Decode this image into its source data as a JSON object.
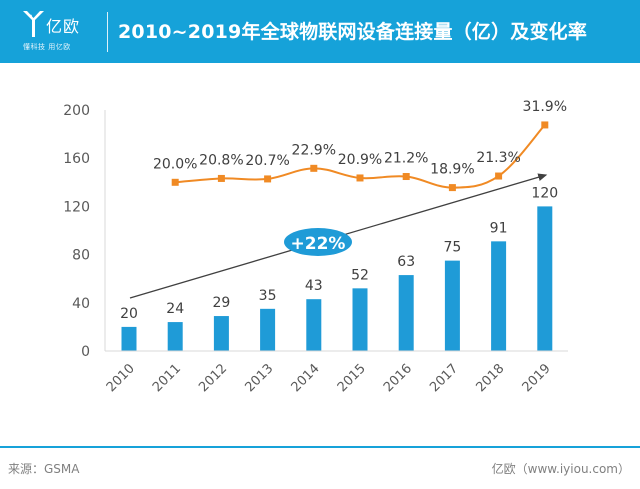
{
  "brand": {
    "name": "亿欧",
    "tagline": "懂科技 用亿欧",
    "color": "#16a2d9"
  },
  "header": {
    "title": "2010~2019年全球物联网设备连接量（亿）及变化率"
  },
  "footer": {
    "source": "来源：GSMA",
    "credit": "亿欧（www.iyiou.com）"
  },
  "chart_data": {
    "type": "bar",
    "title": "2010~2019年全球物联网设备连接量（亿）及变化率",
    "xlabel": "",
    "ylabel": "",
    "categories": [
      "2010",
      "2011",
      "2012",
      "2013",
      "2014",
      "2015",
      "2016",
      "2017",
      "2018",
      "2019"
    ],
    "ylim": [
      0,
      200
    ],
    "yticks": [
      0,
      40,
      80,
      120,
      160,
      200
    ],
    "grid": false,
    "legend": "none",
    "series": [
      {
        "name": "全球物联网设备连接量（亿）",
        "type": "bar",
        "color": "#1f9bd7",
        "values": [
          20,
          24,
          29,
          35,
          43,
          52,
          63,
          75,
          91,
          120
        ],
        "labels": [
          "20",
          "24",
          "29",
          "35",
          "43",
          "52",
          "63",
          "75",
          "91",
          "120"
        ]
      },
      {
        "name": "变化率",
        "type": "line",
        "color": "#f08a24",
        "axis": "secondary",
        "ylim": [
          -15,
          35
        ],
        "values": [
          null,
          20.0,
          20.8,
          20.7,
          22.9,
          20.9,
          21.2,
          18.9,
          21.3,
          31.9
        ],
        "labels": [
          "",
          "20.0%",
          "20.8%",
          "20.7%",
          "22.9%",
          "20.9%",
          "21.2%",
          "18.9%",
          "21.3%",
          "31.9%"
        ]
      }
    ],
    "annotations": [
      {
        "type": "trend-arrow",
        "from_category": "2010",
        "to_category": "2019",
        "label": "+22%",
        "label_color": "#ffffff",
        "badge_color": "#1f9bd7"
      }
    ]
  }
}
